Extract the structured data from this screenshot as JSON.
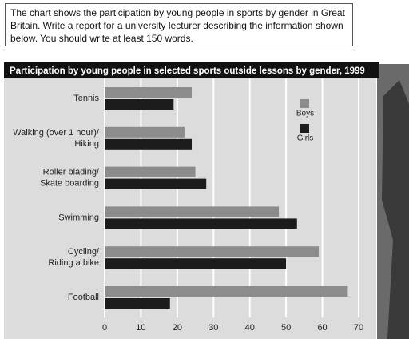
{
  "prompt": "The chart shows the participation by young people in sports by gender in Great Britain. Write a report for a university lecturer describing the information shown below. You should write at least 150 words.",
  "chart_data": {
    "type": "hbar",
    "title": "Participation by young people in selected sports outside lessons by gender, 1999",
    "categories": [
      "Tennis",
      "Walking (over 1 hour)/\nHiking",
      "Roller blading/\nSkate boarding",
      "Swimming",
      "Cycling/\nRiding a bike",
      "Football"
    ],
    "series": [
      {
        "name": "Boys",
        "color": "#8c8c8c",
        "values": [
          24,
          22,
          25,
          48,
          59,
          67
        ]
      },
      {
        "name": "Girls",
        "color": "#1c1c1c",
        "values": [
          19,
          24,
          28,
          53,
          50,
          18
        ]
      }
    ],
    "xlim": [
      0,
      70
    ],
    "xticks": [
      0,
      10,
      20,
      30,
      40,
      50,
      60,
      70
    ],
    "grid": true
  }
}
